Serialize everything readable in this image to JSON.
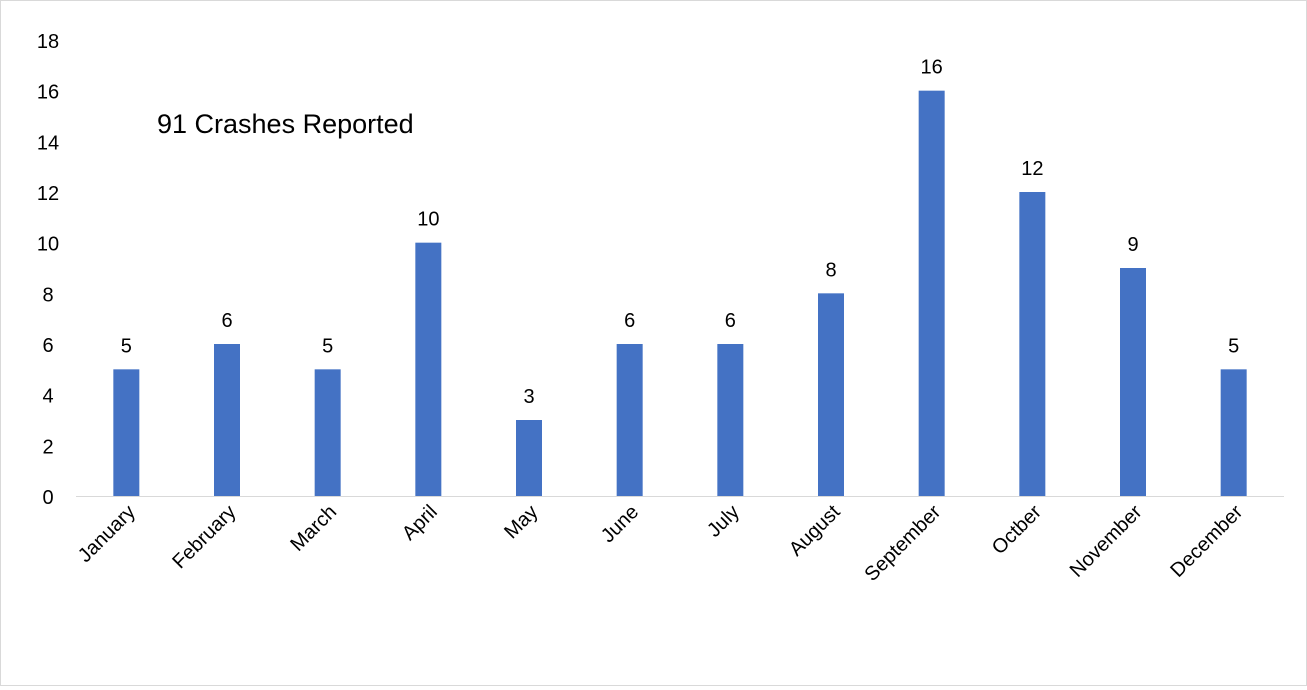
{
  "chart_data": {
    "type": "bar",
    "annotation": "91 Crashes Reported",
    "categories": [
      "January",
      "February",
      "March",
      "April",
      "May",
      "June",
      "July",
      "August",
      "September",
      "Octber",
      "November",
      "December"
    ],
    "values": [
      5,
      6,
      5,
      10,
      3,
      6,
      6,
      8,
      16,
      12,
      9,
      5
    ],
    "y_ticks": [
      "0",
      "2",
      "4",
      "6",
      "8",
      "10",
      "12",
      "14",
      "16",
      "18"
    ],
    "ylim": [
      0,
      18
    ],
    "grid": false,
    "legend": "none",
    "bar_color": "#4472C4",
    "axis_color": "#d9d9d9"
  }
}
